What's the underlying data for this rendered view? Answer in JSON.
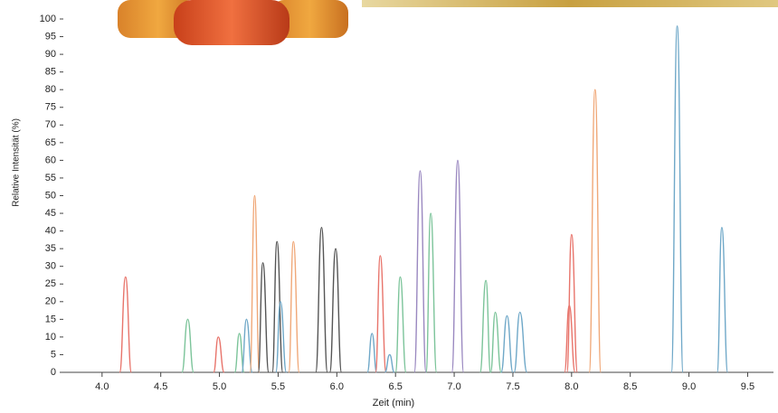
{
  "chart_data": {
    "type": "line",
    "xlabel": "Zeit (min)",
    "ylabel": "Relative Intensität (%)",
    "xlim": [
      3.67,
      9.72
    ],
    "ylim": [
      0,
      100
    ],
    "xticks": [
      {
        "value": 4,
        "label": "4.0"
      },
      {
        "value": 4.5,
        "label": "4.5"
      },
      {
        "value": 5,
        "label": "5.0"
      },
      {
        "value": 5.5,
        "label": "5.5"
      },
      {
        "value": 6,
        "label": "6.0"
      },
      {
        "value": 6.5,
        "label": "6.5"
      },
      {
        "value": 7,
        "label": "7.0"
      },
      {
        "value": 7.5,
        "label": "7.5"
      },
      {
        "value": 8,
        "label": "8.0"
      },
      {
        "value": 8.5,
        "label": "8.5"
      },
      {
        "value": 9,
        "label": "9.0"
      },
      {
        "value": 9.5,
        "label": "9.5"
      }
    ],
    "yticks": [
      0,
      5,
      10,
      15,
      20,
      25,
      30,
      35,
      40,
      45,
      50,
      55,
      60,
      65,
      70,
      75,
      80,
      85,
      90,
      95,
      100
    ],
    "series": [
      {
        "color": "#e8746b",
        "x": [
          4.15,
          4.2,
          4.25
        ],
        "values": [
          0,
          27,
          0
        ]
      },
      {
        "color": "#7cc49a",
        "x": [
          4.68,
          4.73,
          4.78
        ],
        "values": [
          0,
          15,
          0
        ]
      },
      {
        "color": "#e8746b",
        "x": [
          4.95,
          4.99,
          5.04
        ],
        "values": [
          0,
          10,
          0
        ]
      },
      {
        "color": "#7cc49a",
        "x": [
          5.13,
          5.17,
          5.21
        ],
        "values": [
          0,
          11,
          0
        ]
      },
      {
        "color": "#6fa8c8",
        "x": [
          5.19,
          5.23,
          5.28
        ],
        "values": [
          0,
          15,
          0
        ]
      },
      {
        "color": "#f0a878",
        "x": [
          5.26,
          5.3,
          5.34
        ],
        "values": [
          0,
          50,
          0
        ]
      },
      {
        "color": "#555555",
        "x": [
          5.33,
          5.37,
          5.42
        ],
        "values": [
          0,
          31,
          0
        ]
      },
      {
        "color": "#555555",
        "x": [
          5.45,
          5.49,
          5.54
        ],
        "values": [
          0,
          37,
          0
        ]
      },
      {
        "color": "#6fa8c8",
        "x": [
          5.48,
          5.52,
          5.57
        ],
        "values": [
          0,
          20,
          0
        ]
      },
      {
        "color": "#f0a878",
        "x": [
          5.59,
          5.63,
          5.68
        ],
        "values": [
          0,
          37,
          0
        ]
      },
      {
        "color": "#555555",
        "x": [
          5.82,
          5.87,
          5.92
        ],
        "values": [
          0,
          41,
          0
        ]
      },
      {
        "color": "#555555",
        "x": [
          5.94,
          5.99,
          6.04
        ],
        "values": [
          0,
          35,
          0
        ]
      },
      {
        "color": "#6fa8c8",
        "x": [
          6.26,
          6.3,
          6.34
        ],
        "values": [
          0,
          11,
          0
        ]
      },
      {
        "color": "#e8746b",
        "x": [
          6.33,
          6.37,
          6.42
        ],
        "values": [
          0,
          33,
          0
        ]
      },
      {
        "color": "#6fa8c8",
        "x": [
          6.41,
          6.45,
          6.49
        ],
        "values": [
          0,
          5,
          0
        ]
      },
      {
        "color": "#7cc49a",
        "x": [
          6.5,
          6.54,
          6.59
        ],
        "values": [
          0,
          27,
          0
        ]
      },
      {
        "color": "#9a88c0",
        "x": [
          6.66,
          6.71,
          6.76
        ],
        "values": [
          0,
          57,
          0
        ]
      },
      {
        "color": "#7cc49a",
        "x": [
          6.76,
          6.8,
          6.85
        ],
        "values": [
          0,
          45,
          0
        ]
      },
      {
        "color": "#9a88c0",
        "x": [
          6.98,
          7.03,
          7.08
        ],
        "values": [
          0,
          60,
          0
        ]
      },
      {
        "color": "#7cc49a",
        "x": [
          7.22,
          7.27,
          7.31
        ],
        "values": [
          0,
          26,
          0
        ]
      },
      {
        "color": "#7cc49a",
        "x": [
          7.31,
          7.35,
          7.4
        ],
        "values": [
          0,
          17,
          0
        ]
      },
      {
        "color": "#6fa8c8",
        "x": [
          7.4,
          7.45,
          7.5
        ],
        "values": [
          0,
          16,
          0
        ]
      },
      {
        "color": "#6fa8c8",
        "x": [
          7.51,
          7.56,
          7.62
        ],
        "values": [
          0,
          17,
          0
        ]
      },
      {
        "color": "#e8746b",
        "x": [
          7.94,
          7.98,
          8.03
        ],
        "values": [
          0,
          19,
          0
        ]
      },
      {
        "color": "#e8746b",
        "x": [
          7.96,
          8.0,
          8.05
        ],
        "values": [
          0,
          39,
          0
        ]
      },
      {
        "color": "#f0a878",
        "x": [
          8.15,
          8.2,
          8.25
        ],
        "values": [
          0,
          80,
          0
        ]
      },
      {
        "color": "#6fa8c8",
        "x": [
          8.85,
          8.9,
          8.95
        ],
        "values": [
          0,
          98,
          0
        ]
      },
      {
        "color": "#6fa8c8",
        "x": [
          9.24,
          9.28,
          9.33
        ],
        "values": [
          0,
          41,
          0
        ]
      }
    ]
  }
}
